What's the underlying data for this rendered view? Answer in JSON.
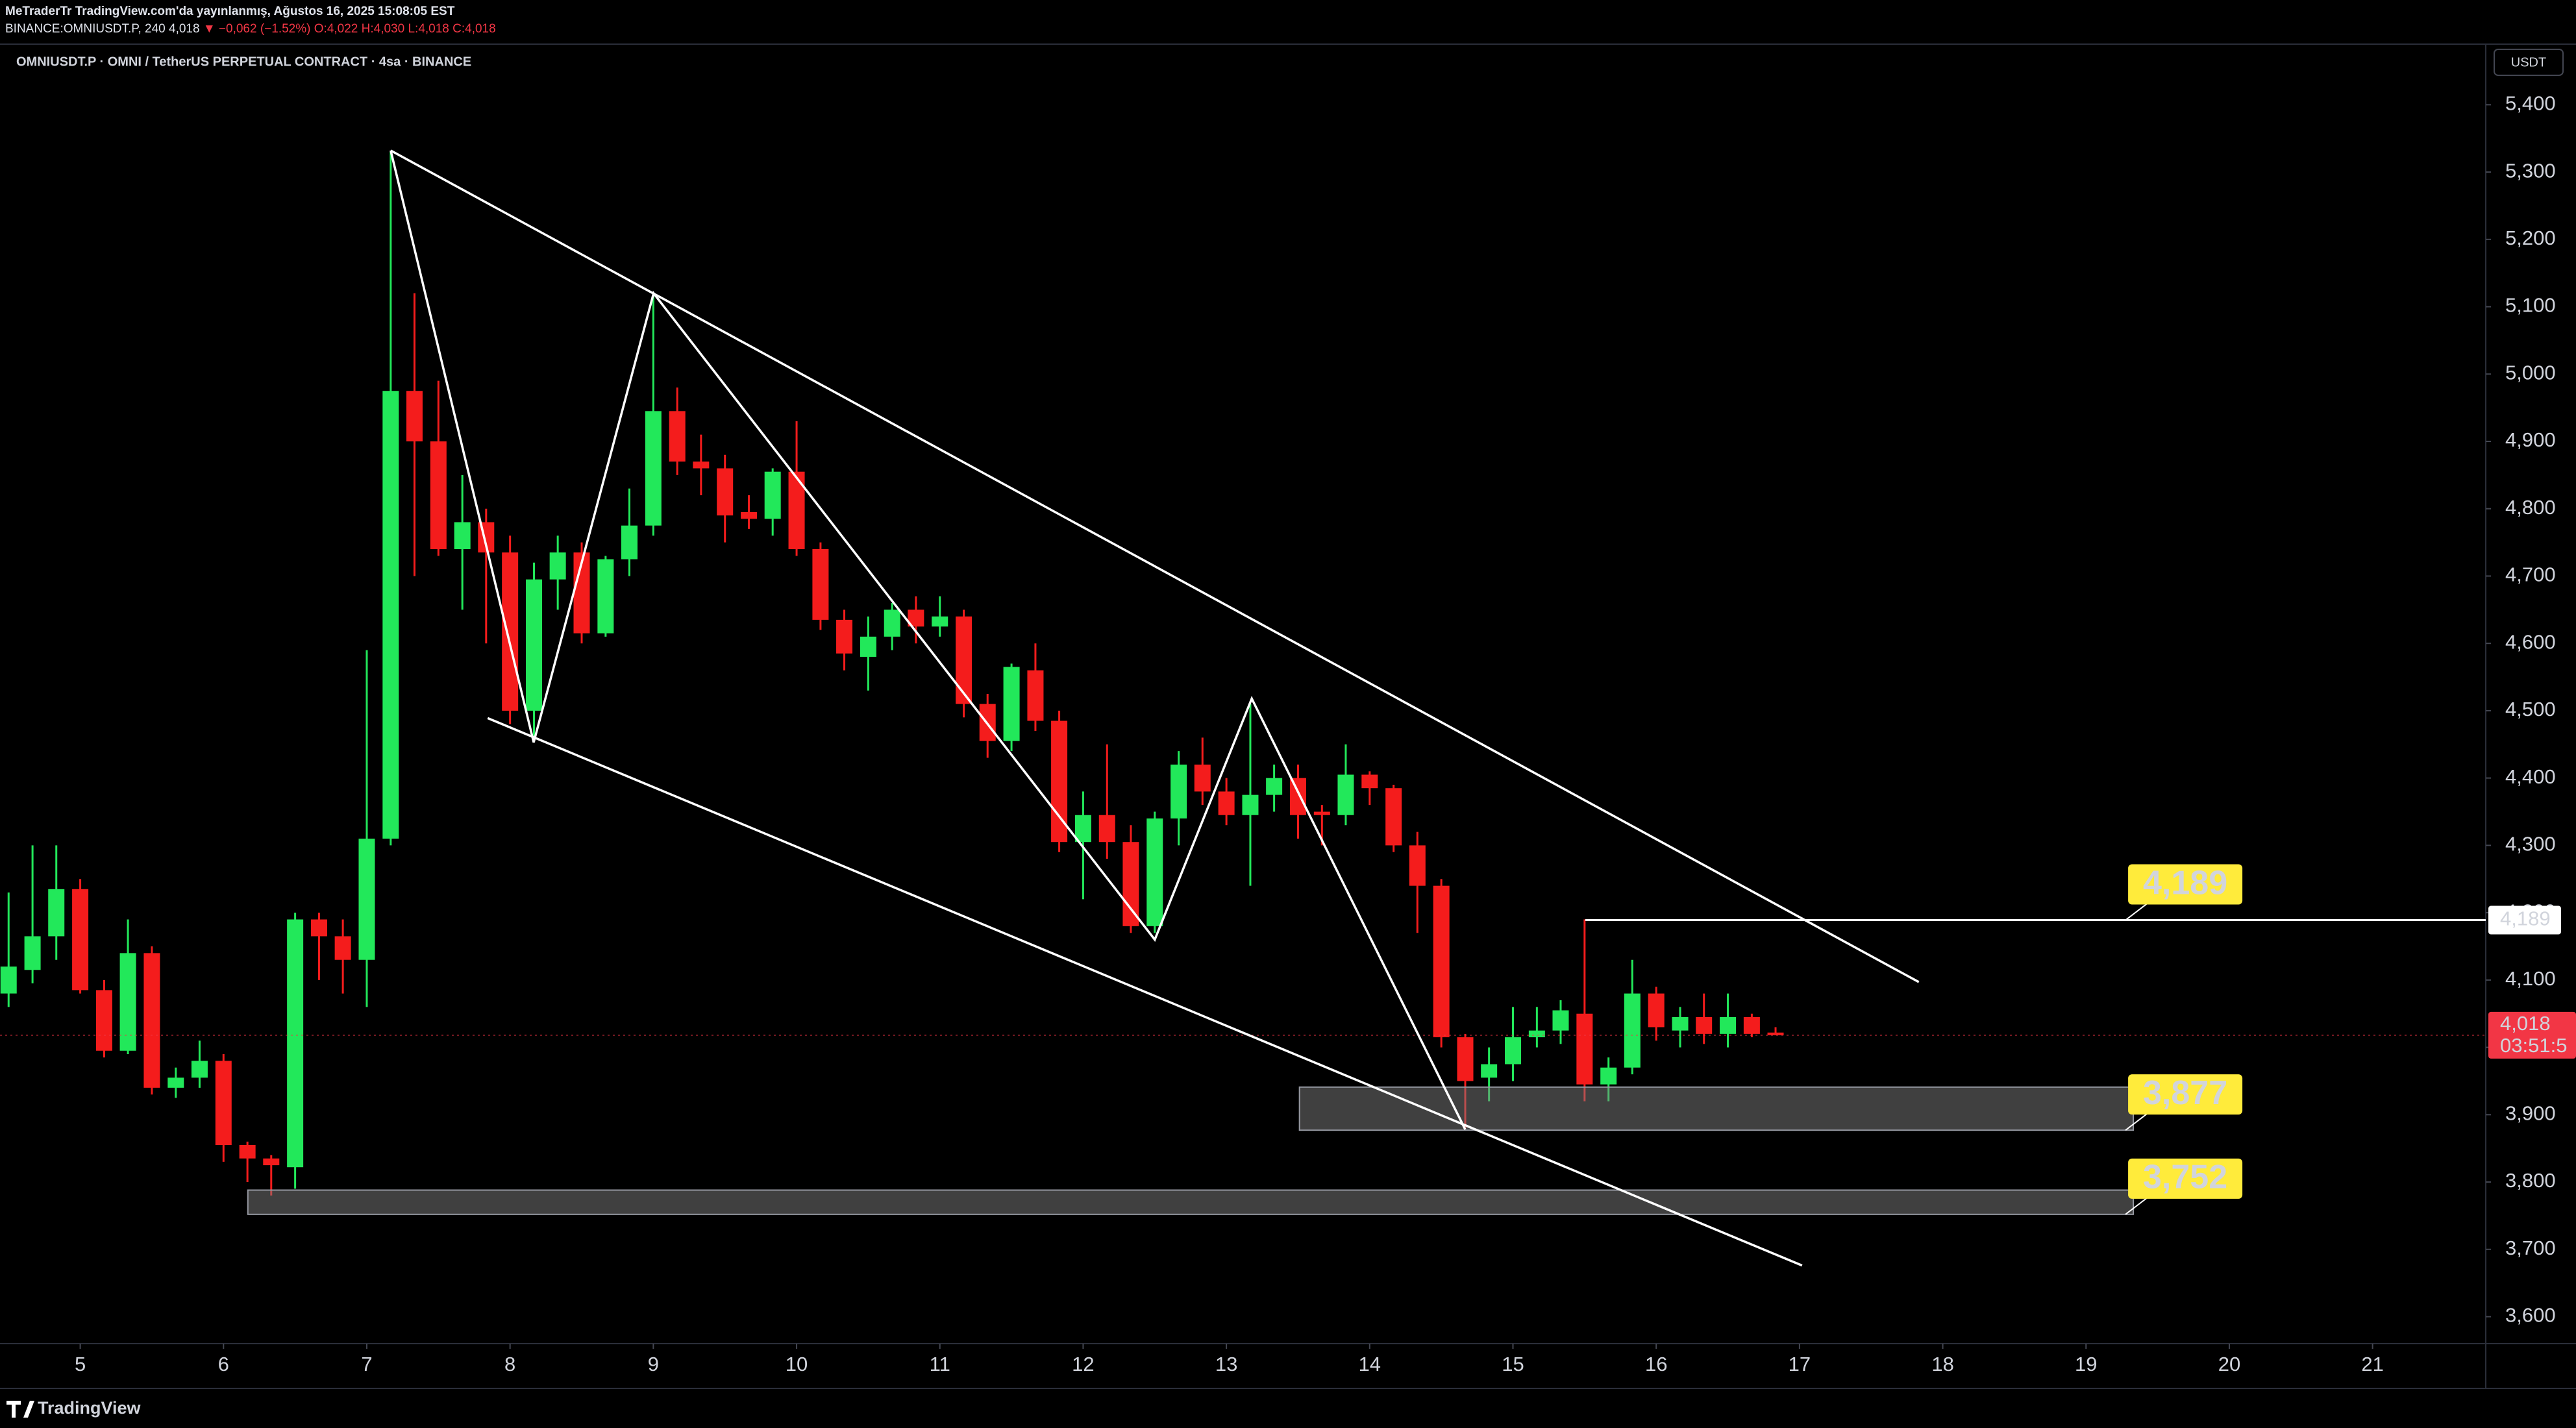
{
  "header": {
    "publisher": "MeTraderTr TradingView.com'da yayınlanmış, Ağustos 16, 2025 15:08:05 EST",
    "symbol": "BINANCE:OMNIUSDT.P, 240",
    "price": "4,018",
    "change": "▼ −0,062 (−1.52%)",
    "ohlc": "O:4,022 H:4,030 L:4,018 C:4,018"
  },
  "footer": {
    "brand": "TradingView"
  },
  "chart_data": {
    "type": "candlestick",
    "title": "OMNIUSDT.P · OMNI / TetherUS PERPETUAL CONTRACT · 4sa · BINANCE",
    "currency": "USDT",
    "up_color": "#22e85a",
    "down_color": "#f41c1c",
    "grid": false,
    "x": [
      4.5,
      4.667,
      4.833,
      5,
      5.167,
      5.333,
      5.5,
      5.667,
      5.833,
      6,
      6.167,
      6.333,
      6.5,
      6.667,
      6.833,
      7,
      7.167,
      7.333,
      7.5,
      7.667,
      7.833,
      8,
      8.167,
      8.333,
      8.5,
      8.667,
      8.833,
      9,
      9.167,
      9.333,
      9.5,
      9.667,
      9.833,
      10,
      10.167,
      10.333,
      10.5,
      10.667,
      10.833,
      11,
      11.167,
      11.333,
      11.5,
      11.667,
      11.833,
      12,
      12.167,
      12.333,
      12.5,
      12.667,
      12.833,
      13,
      13.167,
      13.333,
      13.5,
      13.667,
      13.833,
      14,
      14.167,
      14.333,
      14.5,
      14.667,
      14.833,
      15,
      15.167,
      15.333,
      15.5,
      15.667,
      15.833,
      16,
      16.167,
      16.333,
      16.5,
      16.667,
      16.833
    ],
    "open": [
      4080,
      4115,
      4165,
      4235,
      4085,
      3995,
      4140,
      3940,
      3955,
      3980,
      3855,
      3835,
      3822,
      4190,
      4165,
      4130,
      4310,
      4975,
      4900,
      4740,
      4780,
      4735,
      4500,
      4695,
      4735,
      4615,
      4725,
      4775,
      4945,
      4870,
      4860,
      4795,
      4785,
      4855,
      4740,
      4635,
      4580,
      4610,
      4650,
      4625,
      4640,
      4510,
      4455,
      4560,
      4485,
      4305,
      4345,
      4305,
      4180,
      4340,
      4420,
      4380,
      4345,
      4375,
      4400,
      4350,
      4345,
      4405,
      4385,
      4300,
      4240,
      4015,
      3955,
      3975,
      4015,
      4025,
      4050,
      3945,
      3970,
      4080,
      4025,
      4045,
      4020,
      4045,
      4022
    ],
    "high": [
      4230,
      4300,
      4300,
      4250,
      4100,
      4190,
      4150,
      3970,
      4010,
      3990,
      3860,
      3840,
      4200,
      4200,
      4190,
      4590,
      5330,
      5120,
      4990,
      4850,
      4800,
      4760,
      4720,
      4760,
      4750,
      4730,
      4830,
      5120,
      4980,
      4910,
      4880,
      4820,
      4860,
      4930,
      4750,
      4650,
      4640,
      4660,
      4670,
      4670,
      4650,
      4525,
      4570,
      4600,
      4500,
      4380,
      4450,
      4330,
      4350,
      4440,
      4460,
      4400,
      4510,
      4420,
      4420,
      4360,
      4450,
      4410,
      4390,
      4320,
      4250,
      4020,
      4000,
      4060,
      4060,
      4070,
      4190,
      3985,
      4130,
      4090,
      4060,
      4080,
      4080,
      4050,
      4030
    ],
    "low": [
      4060,
      4095,
      4130,
      4080,
      3985,
      3990,
      3930,
      3925,
      3940,
      3830,
      3800,
      3780,
      3790,
      4100,
      4080,
      4060,
      4300,
      4700,
      4730,
      4650,
      4600,
      4480,
      4460,
      4650,
      4600,
      4610,
      4700,
      4760,
      4850,
      4820,
      4750,
      4770,
      4760,
      4730,
      4620,
      4560,
      4530,
      4590,
      4600,
      4610,
      4490,
      4430,
      4440,
      4470,
      4290,
      4220,
      4280,
      4170,
      4170,
      4300,
      4360,
      4330,
      4240,
      4350,
      4310,
      4300,
      4330,
      4360,
      4290,
      4170,
      4000,
      3880,
      3920,
      3950,
      4000,
      4005,
      3920,
      3920,
      3960,
      4010,
      4000,
      4005,
      4000,
      4015,
      4018
    ],
    "close": [
      4120,
      4165,
      4235,
      4085,
      3995,
      4140,
      3940,
      3955,
      3980,
      3855,
      3835,
      3825,
      4190,
      4165,
      4130,
      4310,
      4975,
      4900,
      4740,
      4780,
      4735,
      4500,
      4695,
      4735,
      4615,
      4725,
      4775,
      4945,
      4870,
      4860,
      4790,
      4785,
      4855,
      4740,
      4635,
      4585,
      4610,
      4650,
      4625,
      4640,
      4510,
      4455,
      4565,
      4485,
      4305,
      4345,
      4305,
      4180,
      4340,
      4420,
      4380,
      4345,
      4375,
      4400,
      4345,
      4345,
      4405,
      4385,
      4300,
      4240,
      4015,
      3950,
      3975,
      4015,
      4025,
      4055,
      3945,
      3970,
      4080,
      4030,
      4045,
      4020,
      4045,
      4020,
      4018
    ],
    "xlim": [
      4.44,
      21.79
    ],
    "xticks": [
      5,
      6,
      7,
      8,
      9,
      10,
      11,
      12,
      13,
      14,
      15,
      16,
      17,
      18,
      19,
      20,
      21
    ],
    "ylim": [
      3560,
      5490
    ],
    "yticks": [
      {
        "value": 3600,
        "label": "3,600"
      },
      {
        "value": 3700,
        "label": "3,700"
      },
      {
        "value": 3800,
        "label": "3,800"
      },
      {
        "value": 3900,
        "label": "3,900"
      },
      {
        "value": 4000,
        "label": "4,000"
      },
      {
        "value": 4100,
        "label": "4,100"
      },
      {
        "value": 4200,
        "label": "4,200"
      },
      {
        "value": 4300,
        "label": "4,300"
      },
      {
        "value": 4400,
        "label": "4,400"
      },
      {
        "value": 4500,
        "label": "4,500"
      },
      {
        "value": 4600,
        "label": "4,600"
      },
      {
        "value": 4700,
        "label": "4,700"
      },
      {
        "value": 4800,
        "label": "4,800"
      },
      {
        "value": 4900,
        "label": "4,900"
      },
      {
        "value": 5000,
        "label": "5,000"
      },
      {
        "value": 5100,
        "label": "5,100"
      },
      {
        "value": 5200,
        "label": "5,200"
      },
      {
        "value": 5300,
        "label": "5,300"
      },
      {
        "value": 5400,
        "label": "5,400"
      }
    ],
    "last_price": {
      "value": 4018,
      "label": "4,018",
      "countdown": "03:51:5"
    },
    "trendlines": [
      {
        "x": [
          7.167,
          17.833
        ],
        "y": [
          5332,
          4097
        ]
      },
      {
        "x": [
          7.844,
          17.018
        ],
        "y": [
          4489,
          3676
        ]
      },
      {
        "x": [
          7.167,
          8.165,
          9.002,
          12.5,
          13.177,
          14.667
        ],
        "y": [
          5332,
          4453,
          5120,
          4160,
          4518,
          3878
        ]
      }
    ],
    "levels": [
      {
        "value": 4189,
        "label": "4,189",
        "x_start": 15.505,
        "label_x": 19.33
      }
    ],
    "zones": [
      {
        "x": [
          13.51,
          19.33
        ],
        "y": [
          3877,
          3941
        ],
        "label": "3,877"
      },
      {
        "x": [
          6.17,
          19.33
        ],
        "y": [
          3752,
          3788
        ],
        "label": "3,752"
      }
    ]
  }
}
